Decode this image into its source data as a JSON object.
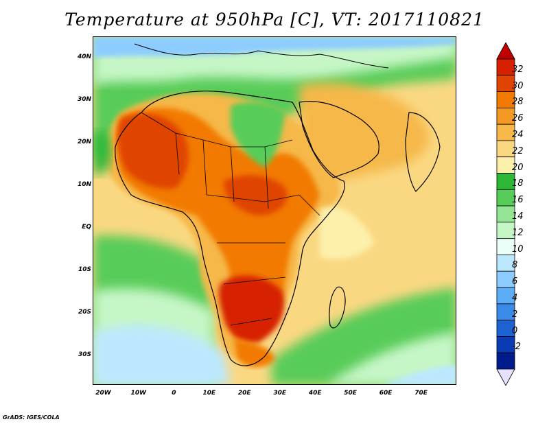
{
  "title": "Temperature at 950hPa [C], VT: 2017110821",
  "footer": "GrADS: IGES/COLA",
  "map": {
    "lat_range": [
      -37,
      45
    ],
    "lon_range": [
      -23,
      80
    ],
    "y_ticks": [
      "40N",
      "30N",
      "20N",
      "10N",
      "EQ",
      "10S",
      "20S",
      "30S"
    ],
    "x_ticks": [
      "20W",
      "10W",
      "0",
      "10E",
      "20E",
      "30E",
      "40E",
      "50E",
      "60E",
      "70E"
    ]
  },
  "colorbar": {
    "labels": [
      "32",
      "30",
      "28",
      "26",
      "24",
      "22",
      "20",
      "18",
      "16",
      "14",
      "12",
      "10",
      "8",
      "6",
      "4",
      "2",
      "0",
      "-2"
    ],
    "colors": [
      "#d62000",
      "#e04400",
      "#f27a00",
      "#f49a24",
      "#f6b848",
      "#fad882",
      "#fcf0aa",
      "#2eb838",
      "#58cc58",
      "#94e694",
      "#c6f6c6",
      "#eafff8",
      "#bce8ff",
      "#8cccff",
      "#5cacf6",
      "#3a8ae8",
      "#1c62d2",
      "#0a3ab4",
      "#001c8c"
    ],
    "over_color": "#c00000",
    "under_color": "#e8e0ff"
  }
}
